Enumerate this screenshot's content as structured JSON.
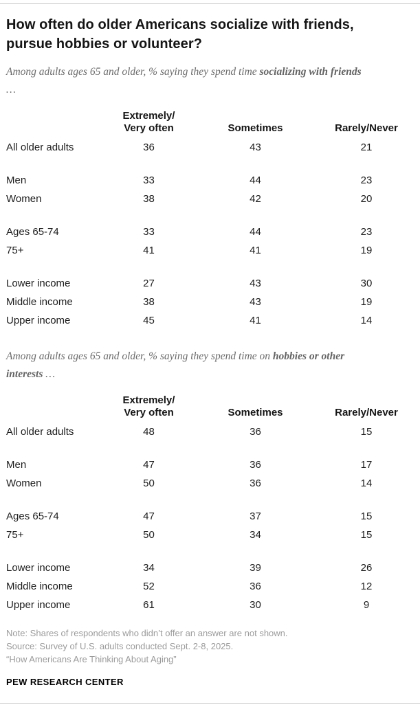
{
  "title": "How often do older Americans socialize with friends,\npursue hobbies or volunteer?",
  "chart_data": [
    {
      "type": "table",
      "subtitle_prefix": "Among adults ages 65 and older, % saying they spend time ",
      "subtitle_bold": "socializing with friends",
      "subtitle_suffix": " …",
      "columns": [
        "Extremely/\nVery often",
        "Sometimes",
        "Rarely/Never"
      ],
      "groups": [
        {
          "rows": [
            {
              "label": "All older adults",
              "values": [
                36,
                43,
                21
              ]
            }
          ]
        },
        {
          "rows": [
            {
              "label": "Men",
              "values": [
                33,
                44,
                23
              ]
            },
            {
              "label": "Women",
              "values": [
                38,
                42,
                20
              ]
            }
          ]
        },
        {
          "rows": [
            {
              "label": "Ages 65-74",
              "values": [
                33,
                44,
                23
              ]
            },
            {
              "label": "75+",
              "values": [
                41,
                41,
                19
              ]
            }
          ]
        },
        {
          "rows": [
            {
              "label": "Lower income",
              "values": [
                27,
                43,
                30
              ]
            },
            {
              "label": "Middle income",
              "values": [
                38,
                43,
                19
              ]
            },
            {
              "label": "Upper income",
              "values": [
                45,
                41,
                14
              ]
            }
          ]
        }
      ]
    },
    {
      "type": "table",
      "subtitle_prefix": "Among adults ages 65 and older, % saying they spend time on ",
      "subtitle_bold": "hobbies or other interests",
      "subtitle_suffix": " …",
      "columns": [
        "Extremely/\nVery often",
        "Sometimes",
        "Rarely/Never"
      ],
      "groups": [
        {
          "rows": [
            {
              "label": "All older adults",
              "values": [
                48,
                36,
                15
              ]
            }
          ]
        },
        {
          "rows": [
            {
              "label": "Men",
              "values": [
                47,
                36,
                17
              ]
            },
            {
              "label": "Women",
              "values": [
                50,
                36,
                14
              ]
            }
          ]
        },
        {
          "rows": [
            {
              "label": "Ages 65-74",
              "values": [
                47,
                37,
                15
              ]
            },
            {
              "label": "75+",
              "values": [
                50,
                34,
                15
              ]
            }
          ]
        },
        {
          "rows": [
            {
              "label": "Lower income",
              "values": [
                34,
                39,
                26
              ]
            },
            {
              "label": "Middle income",
              "values": [
                52,
                36,
                12
              ]
            },
            {
              "label": "Upper income",
              "values": [
                61,
                30,
                9
              ]
            }
          ]
        }
      ]
    }
  ],
  "notes": [
    "Note: Shares of respondents who didn’t offer an answer are not shown.",
    "Source: Survey of U.S. adults conducted Sept. 2-8, 2025.",
    "“How Americans Are Thinking About Aging”"
  ],
  "footer": "PEW RESEARCH CENTER"
}
